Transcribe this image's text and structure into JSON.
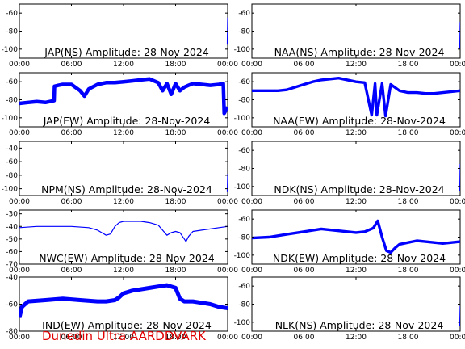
{
  "footer": {
    "label": "Dunedin Ultra AARDDVARK",
    "color": "#e00000"
  },
  "style": {
    "line_color": "#0000ff",
    "axis_color": "#000000",
    "background": "#ffffff"
  },
  "chart_data": [
    {
      "type": "line",
      "title": "JAP(NS) Amplitude: 28-Nov-2024",
      "xlabel": "",
      "ylabel": "",
      "xlim": [
        "00:00",
        "24:00"
      ],
      "ylim": [
        -110,
        -50
      ],
      "xticks": [
        "00:00",
        "06:00",
        "12:00",
        "18:00",
        "00:00"
      ],
      "yticks": [
        -100,
        -80,
        -60
      ],
      "series": [
        {
          "x": [
            23.95,
            24.0
          ],
          "y": [
            -95,
            -65
          ]
        }
      ]
    },
    {
      "type": "line",
      "title": "NAA(NS) Amplitude: 28-Nov-2024",
      "xlabel": "",
      "ylabel": "",
      "xlim": [
        "00:00",
        "24:00"
      ],
      "ylim": [
        -110,
        -50
      ],
      "xticks": [
        "00:00",
        "06:00",
        "12:00",
        "18:00",
        "00:00"
      ],
      "yticks": [
        -100,
        -80,
        -60
      ],
      "series": [
        {
          "x": [
            23.95,
            24.0
          ],
          "y": [
            -100,
            -70
          ]
        }
      ]
    },
    {
      "type": "line",
      "title": "JAP(EW) Amplitude: 28-Nov-2024",
      "xlabel": "",
      "ylabel": "",
      "xlim": [
        "00:00",
        "24:00"
      ],
      "ylim": [
        -110,
        -50
      ],
      "xticks": [
        "00:00",
        "06:00",
        "12:00",
        "18:00",
        "00:00"
      ],
      "yticks": [
        -100,
        -80,
        -60
      ],
      "band": 4,
      "series": [
        {
          "x": [
            0,
            1,
            2,
            3,
            4,
            4.05,
            4.5,
            5,
            6,
            7,
            7.5,
            8,
            9,
            10,
            11,
            12,
            13,
            14,
            15,
            16,
            16.5,
            17,
            17.5,
            18,
            18.5,
            19,
            19.5,
            20,
            21,
            22,
            23,
            23.5,
            23.6,
            24
          ],
          "y": [
            -84,
            -83,
            -82,
            -83,
            -81,
            -65,
            -64,
            -63,
            -63,
            -70,
            -76,
            -68,
            -63,
            -61,
            -61,
            -60,
            -59,
            -58,
            -57,
            -61,
            -70,
            -62,
            -74,
            -62,
            -70,
            -66,
            -64,
            -62,
            -63,
            -64,
            -63,
            -62,
            -95,
            -88
          ]
        }
      ]
    },
    {
      "type": "line",
      "title": "NAA(EW) Amplitude: 28-Nov-2024",
      "xlabel": "",
      "ylabel": "",
      "xlim": [
        "00:00",
        "24:00"
      ],
      "ylim": [
        -110,
        -50
      ],
      "xticks": [
        "00:00",
        "06:00",
        "12:00",
        "18:00",
        "00:00"
      ],
      "yticks": [
        -100,
        -80,
        -60
      ],
      "band": 3,
      "series": [
        {
          "x": [
            0,
            1,
            2,
            3,
            4,
            5,
            6,
            7,
            8,
            9,
            10,
            11,
            12,
            13,
            13.8,
            14.2,
            14.4,
            15,
            15.4,
            16,
            17,
            18,
            19,
            20,
            21,
            22,
            23,
            24
          ],
          "y": [
            -70,
            -70,
            -70,
            -70,
            -69,
            -66,
            -63,
            -60,
            -58,
            -57,
            -56,
            -58,
            -60,
            -61,
            -97,
            -62,
            -97,
            -62,
            -98,
            -63,
            -70,
            -72,
            -72,
            -73,
            -73,
            -72,
            -71,
            -70
          ]
        }
      ]
    },
    {
      "type": "line",
      "title": "NPM(NS) Amplitude: 28-Nov-2024",
      "xlabel": "",
      "ylabel": "",
      "xlim": [
        "00:00",
        "24:00"
      ],
      "ylim": [
        -110,
        -30
      ],
      "xticks": [
        "00:00",
        "06:00",
        "12:00",
        "18:00",
        "00:00"
      ],
      "yticks": [
        -100,
        -80,
        -60,
        -40
      ],
      "series": [
        {
          "x": [
            23.95,
            24.0
          ],
          "y": [
            -105,
            -78
          ]
        }
      ]
    },
    {
      "type": "line",
      "title": "NDK(NS) Amplitude: 28-Nov-2024",
      "xlabel": "",
      "ylabel": "",
      "xlim": [
        "00:00",
        "24:00"
      ],
      "ylim": [
        -110,
        -50
      ],
      "xticks": [
        "00:00",
        "06:00",
        "12:00",
        "18:00",
        "00:00"
      ],
      "yticks": [
        -100,
        -80,
        -60
      ],
      "series": [
        {
          "x": [
            23.95,
            24.0
          ],
          "y": [
            -105,
            -75
          ]
        }
      ]
    },
    {
      "type": "line",
      "title": "NWC(EW) Amplitude: 28-Nov-2024",
      "xlabel": "",
      "ylabel": "",
      "xlim": [
        "00:00",
        "24:00"
      ],
      "ylim": [
        -70,
        -27
      ],
      "xticks": [
        "00:00",
        "06:00",
        "12:00",
        "18:00",
        "00:00"
      ],
      "yticks": [
        -70,
        -60,
        -50,
        -40,
        -30
      ],
      "band": 0.5,
      "series": [
        {
          "x": [
            0,
            2,
            4,
            6,
            8,
            9,
            10,
            10.5,
            11,
            11.5,
            12,
            14,
            15,
            16,
            16.5,
            17,
            17.5,
            18,
            18.5,
            19,
            19.2,
            19.5,
            20,
            21,
            22,
            23,
            24
          ],
          "y": [
            -41,
            -40,
            -40,
            -40,
            -41,
            -43,
            -47,
            -46,
            -40,
            -37,
            -36,
            -36,
            -37,
            -39,
            -43,
            -47,
            -45,
            -44,
            -45,
            -50,
            -52,
            -48,
            -44,
            -43,
            -42,
            -41,
            -40
          ]
        }
      ]
    },
    {
      "type": "line",
      "title": "NDK(EW) Amplitude: 28-Nov-2024",
      "xlabel": "",
      "ylabel": "",
      "xlim": [
        "00:00",
        "24:00"
      ],
      "ylim": [
        -110,
        -50
      ],
      "xticks": [
        "00:00",
        "06:00",
        "12:00",
        "18:00",
        "00:00"
      ],
      "yticks": [
        -100,
        -80,
        -60
      ],
      "band": 3,
      "series": [
        {
          "x": [
            0,
            2,
            4,
            6,
            8,
            10,
            12,
            13,
            14,
            14.5,
            15,
            15.5,
            16,
            16.5,
            17,
            18,
            19,
            20,
            21,
            22,
            23,
            24
          ],
          "y": [
            -81,
            -80,
            -77,
            -74,
            -71,
            -73,
            -75,
            -74,
            -70,
            -62,
            -80,
            -95,
            -97,
            -92,
            -88,
            -86,
            -84,
            -85,
            -86,
            -87,
            -86,
            -85
          ]
        }
      ]
    },
    {
      "type": "line",
      "title": "IND(EW) Amplitude: 28-Nov-2024",
      "xlabel": "",
      "ylabel": "",
      "xlim": [
        "00:00",
        "24:00"
      ],
      "ylim": [
        -80,
        -40
      ],
      "xticks": [
        "00:00",
        "06:00",
        "12:00",
        "18:00",
        "00:00"
      ],
      "yticks": [
        -80,
        -60,
        -40
      ],
      "band": 3,
      "series": [
        {
          "x": [
            0,
            0.3,
            1,
            3,
            5,
            7,
            9,
            10,
            11,
            11.5,
            12,
            13,
            14,
            15,
            16,
            17,
            18,
            18.5,
            19,
            20,
            21,
            22,
            23,
            24
          ],
          "y": [
            -70,
            -62,
            -58,
            -57,
            -56,
            -57,
            -58,
            -58,
            -57,
            -55,
            -52,
            -50,
            -49,
            -48,
            -47,
            -46,
            -48,
            -56,
            -58,
            -58,
            -59,
            -60,
            -62,
            -63
          ]
        }
      ]
    },
    {
      "type": "line",
      "title": "NLK(NS) Amplitude: 28-Nov-2024",
      "xlabel": "",
      "ylabel": "",
      "xlim": [
        "00:00",
        "24:00"
      ],
      "ylim": [
        -110,
        -50
      ],
      "xticks": [
        "00:00",
        "06:00",
        "12:00",
        "18:00",
        "00:00"
      ],
      "yticks": [
        -100,
        -80,
        -60
      ],
      "series": [
        {
          "x": [
            23.95,
            24.0
          ],
          "y": [
            -104,
            -82
          ]
        }
      ]
    }
  ]
}
